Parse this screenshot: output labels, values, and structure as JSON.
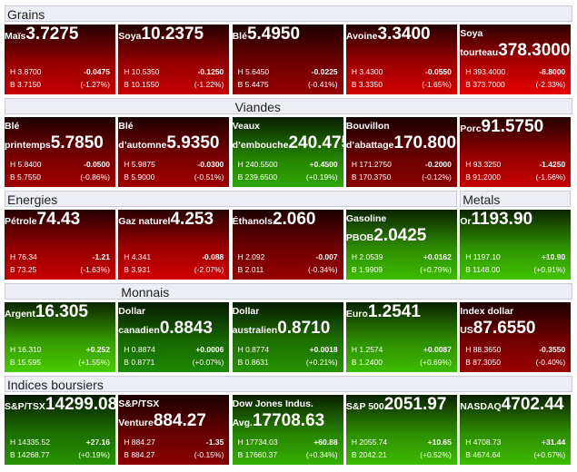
{
  "sections": [
    {
      "title": "Grains",
      "tiles": [
        {
          "name": "Maïs",
          "price": "3.7275",
          "high": "H 3.8700",
          "change": "-0.0475",
          "low": "B 3.7150",
          "pct": "(-1.27%)",
          "color": "#c80000"
        },
        {
          "name": "Soya",
          "price": "10.2375",
          "high": "H 10.5350",
          "change": "-0.1250",
          "low": "B 10.1550",
          "pct": "(-1.22%)",
          "color": "#c80000"
        },
        {
          "name": "Blé",
          "price": "5.4950",
          "high": "H 5.6450",
          "change": "-0.0225",
          "low": "B 5.4475",
          "pct": "(-0.41%)",
          "color": "#960000"
        },
        {
          "name": "Avoine",
          "price": "3.3400",
          "high": "H 3.4300",
          "change": "-0.0550",
          "low": "B 3.3350",
          "pct": "(-1.65%)",
          "color": "#d20000"
        },
        {
          "name": "Soya tourteau",
          "price": "378.3000",
          "high": "H 393.4000",
          "change": "-8.8000",
          "low": "B 373.7000",
          "pct": "(-2.33%)",
          "color": "#e60000"
        }
      ]
    },
    {
      "title": "Viandes",
      "tiles": [
        {
          "name": "Blé printemps",
          "price": "5.7850",
          "high": "H 5.8400",
          "change": "-0.0500",
          "low": "B 5.7550",
          "pct": "(-0.86%)",
          "color": "#a00000"
        },
        {
          "name": "Blé d’automne",
          "price": "5.9350",
          "high": "H 5.9875",
          "change": "-0.0300",
          "low": "B 5.9000",
          "pct": "(-0.51%)",
          "color": "#a00000"
        },
        {
          "name": "Veaux d’embouche",
          "price": "240.4750",
          "high": "H 240.5500",
          "change": "+0.4500",
          "low": "B 239.6500",
          "pct": "(+0.19%)",
          "color": "#2ea800"
        },
        {
          "name": "Bouvillon d’abattage",
          "price": "170.8000",
          "high": "H 171.2750",
          "change": "-0.2000",
          "low": "B 170.3750",
          "pct": "(-0.12%)",
          "color": "#8a0000"
        },
        {
          "name": "Porc",
          "price": "91.5750",
          "high": "H 93.3250",
          "change": "-1.4250",
          "low": "B 91.2000",
          "pct": "(-1.56%)",
          "color": "#c80000"
        }
      ]
    },
    {
      "title": "Energies",
      "tiles": [
        {
          "name": "Pétrole",
          "price": "74.43",
          "high": "H 76.34",
          "change": "-1.21",
          "low": "B 73.25",
          "pct": "(-1.63%)",
          "color": "#c80000"
        },
        {
          "name": "Gaz naturel",
          "price": "4.253",
          "high": "H 4.341",
          "change": "-0.088",
          "low": "B 3.931",
          "pct": "(-2.07%)",
          "color": "#d20000"
        },
        {
          "name": "Éthanols",
          "price": "2.060",
          "high": "H 2.092",
          "change": "-0.007",
          "low": "B 2.011",
          "pct": "(-0.34%)",
          "color": "#960000"
        },
        {
          "name": "Gasoline PBOB",
          "price": "2.0425",
          "high": "H 2.0539",
          "change": "+0.0162",
          "low": "B 1.9909",
          "pct": "(+0.79%)",
          "color": "#3cbc00"
        }
      ]
    },
    {
      "title": "Metals",
      "tiles": [
        {
          "name": "Or",
          "price": "1193.90",
          "high": "H 1197.10",
          "change": "+10.90",
          "low": "B 1148.00",
          "pct": "(+0.91%)",
          "color": "#40c400"
        }
      ]
    },
    {
      "title": "Monnais",
      "tiles": [
        {
          "name": "Argent",
          "price": "16.305",
          "high": "H 16.310",
          "change": "+0.252",
          "low": "B 15.595",
          "pct": "(+1.55%)",
          "color": "#48cc00"
        },
        {
          "name": "Dollar canadien",
          "price": "0.8843",
          "high": "H 0.8874",
          "change": "+0.0006",
          "low": "B 0.8771",
          "pct": "(+0.07%)",
          "color": "#1e8a00"
        },
        {
          "name": "Dollar australien",
          "price": "0.8710",
          "high": "H 0.8774",
          "change": "+0.0018",
          "low": "B 0.8631",
          "pct": "(+0.21%)",
          "color": "#269400"
        },
        {
          "name": "Euro",
          "price": "1.2541",
          "high": "H 1.2574",
          "change": "+0.0087",
          "low": "B 1.2400",
          "pct": "(+0.69%)",
          "color": "#3cbc00"
        },
        {
          "name": "Index dollar US",
          "price": "87.6550",
          "high": "H 88.3650",
          "change": "-0.3550",
          "low": "B 87.3050",
          "pct": "(-0.40%)",
          "color": "#9a0000"
        }
      ]
    },
    {
      "title": "Indices boursiers",
      "tiles": [
        {
          "name": "S&P/TSX",
          "price": "14299.08",
          "high": "H 14335.52",
          "change": "+27.16",
          "low": "B 14268.77",
          "pct": "(+0.19%)",
          "color": "#269400"
        },
        {
          "name": "S&P/TSX Venture",
          "price": "884.27",
          "high": "H 884.27",
          "change": "-1.35",
          "low": "B 884.27",
          "pct": "(-0.15%)",
          "color": "#8a0000"
        },
        {
          "name": "Dow Jones Indus. Avg.",
          "price": "17708.63",
          "high": "H 17734.03",
          "change": "+60.88",
          "low": "B 17660.37",
          "pct": "(+0.34%)",
          "color": "#34b000"
        },
        {
          "name": "S&P 500",
          "price": "2051.97",
          "high": "H 2055.74",
          "change": "+10.65",
          "low": "B 2042.21",
          "pct": "(+0.52%)",
          "color": "#3cbc00"
        },
        {
          "name": "NASDAQ",
          "price": "4702.44",
          "high": "H 4708.73",
          "change": "+31.44",
          "low": "B 4674.64",
          "pct": "(+0.67%)",
          "color": "#3cbc00"
        }
      ]
    }
  ]
}
